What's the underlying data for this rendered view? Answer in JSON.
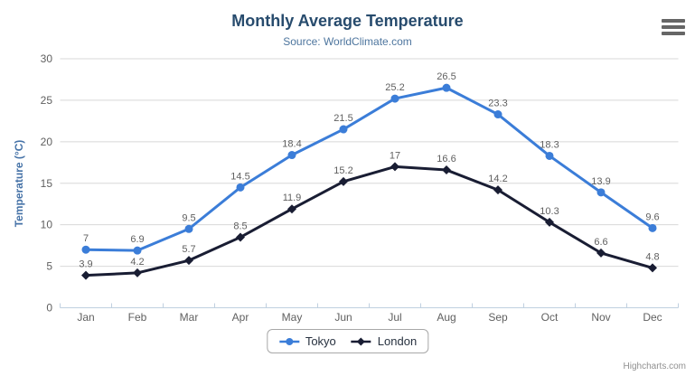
{
  "chart_data": {
    "type": "line",
    "title": "Monthly Average Temperature",
    "subtitle": "Source: WorldClimate.com",
    "xlabel": "",
    "ylabel": "Temperature (°C)",
    "categories": [
      "Jan",
      "Feb",
      "Mar",
      "Apr",
      "May",
      "Jun",
      "Jul",
      "Aug",
      "Sep",
      "Oct",
      "Nov",
      "Dec"
    ],
    "series": [
      {
        "name": "Tokyo",
        "color": "#3b7dd8",
        "marker": "circle",
        "values": [
          7,
          6.9,
          9.5,
          14.5,
          18.4,
          21.5,
          25.2,
          26.5,
          23.3,
          18.3,
          13.9,
          9.6
        ]
      },
      {
        "name": "London",
        "color": "#191d33",
        "marker": "diamond",
        "values": [
          3.9,
          4.2,
          5.7,
          8.5,
          11.9,
          15.2,
          17,
          16.6,
          14.2,
          10.3,
          6.6,
          4.8
        ]
      }
    ],
    "ylim": [
      0,
      30
    ],
    "ytick_interval": 5,
    "grid": true,
    "data_labels": true,
    "legend_position": "bottom-center",
    "colors": {
      "title": "#274b6d",
      "subtitle": "#4d759e",
      "yaxis_title": "#4572a7",
      "axis_labels": "#606060",
      "data_labels": "#606060",
      "gridline": "#d8d8d8",
      "axis_line": "#c0d0e0",
      "menu_icon": "#666666"
    }
  },
  "credits": {
    "text": "Highcharts.com"
  }
}
